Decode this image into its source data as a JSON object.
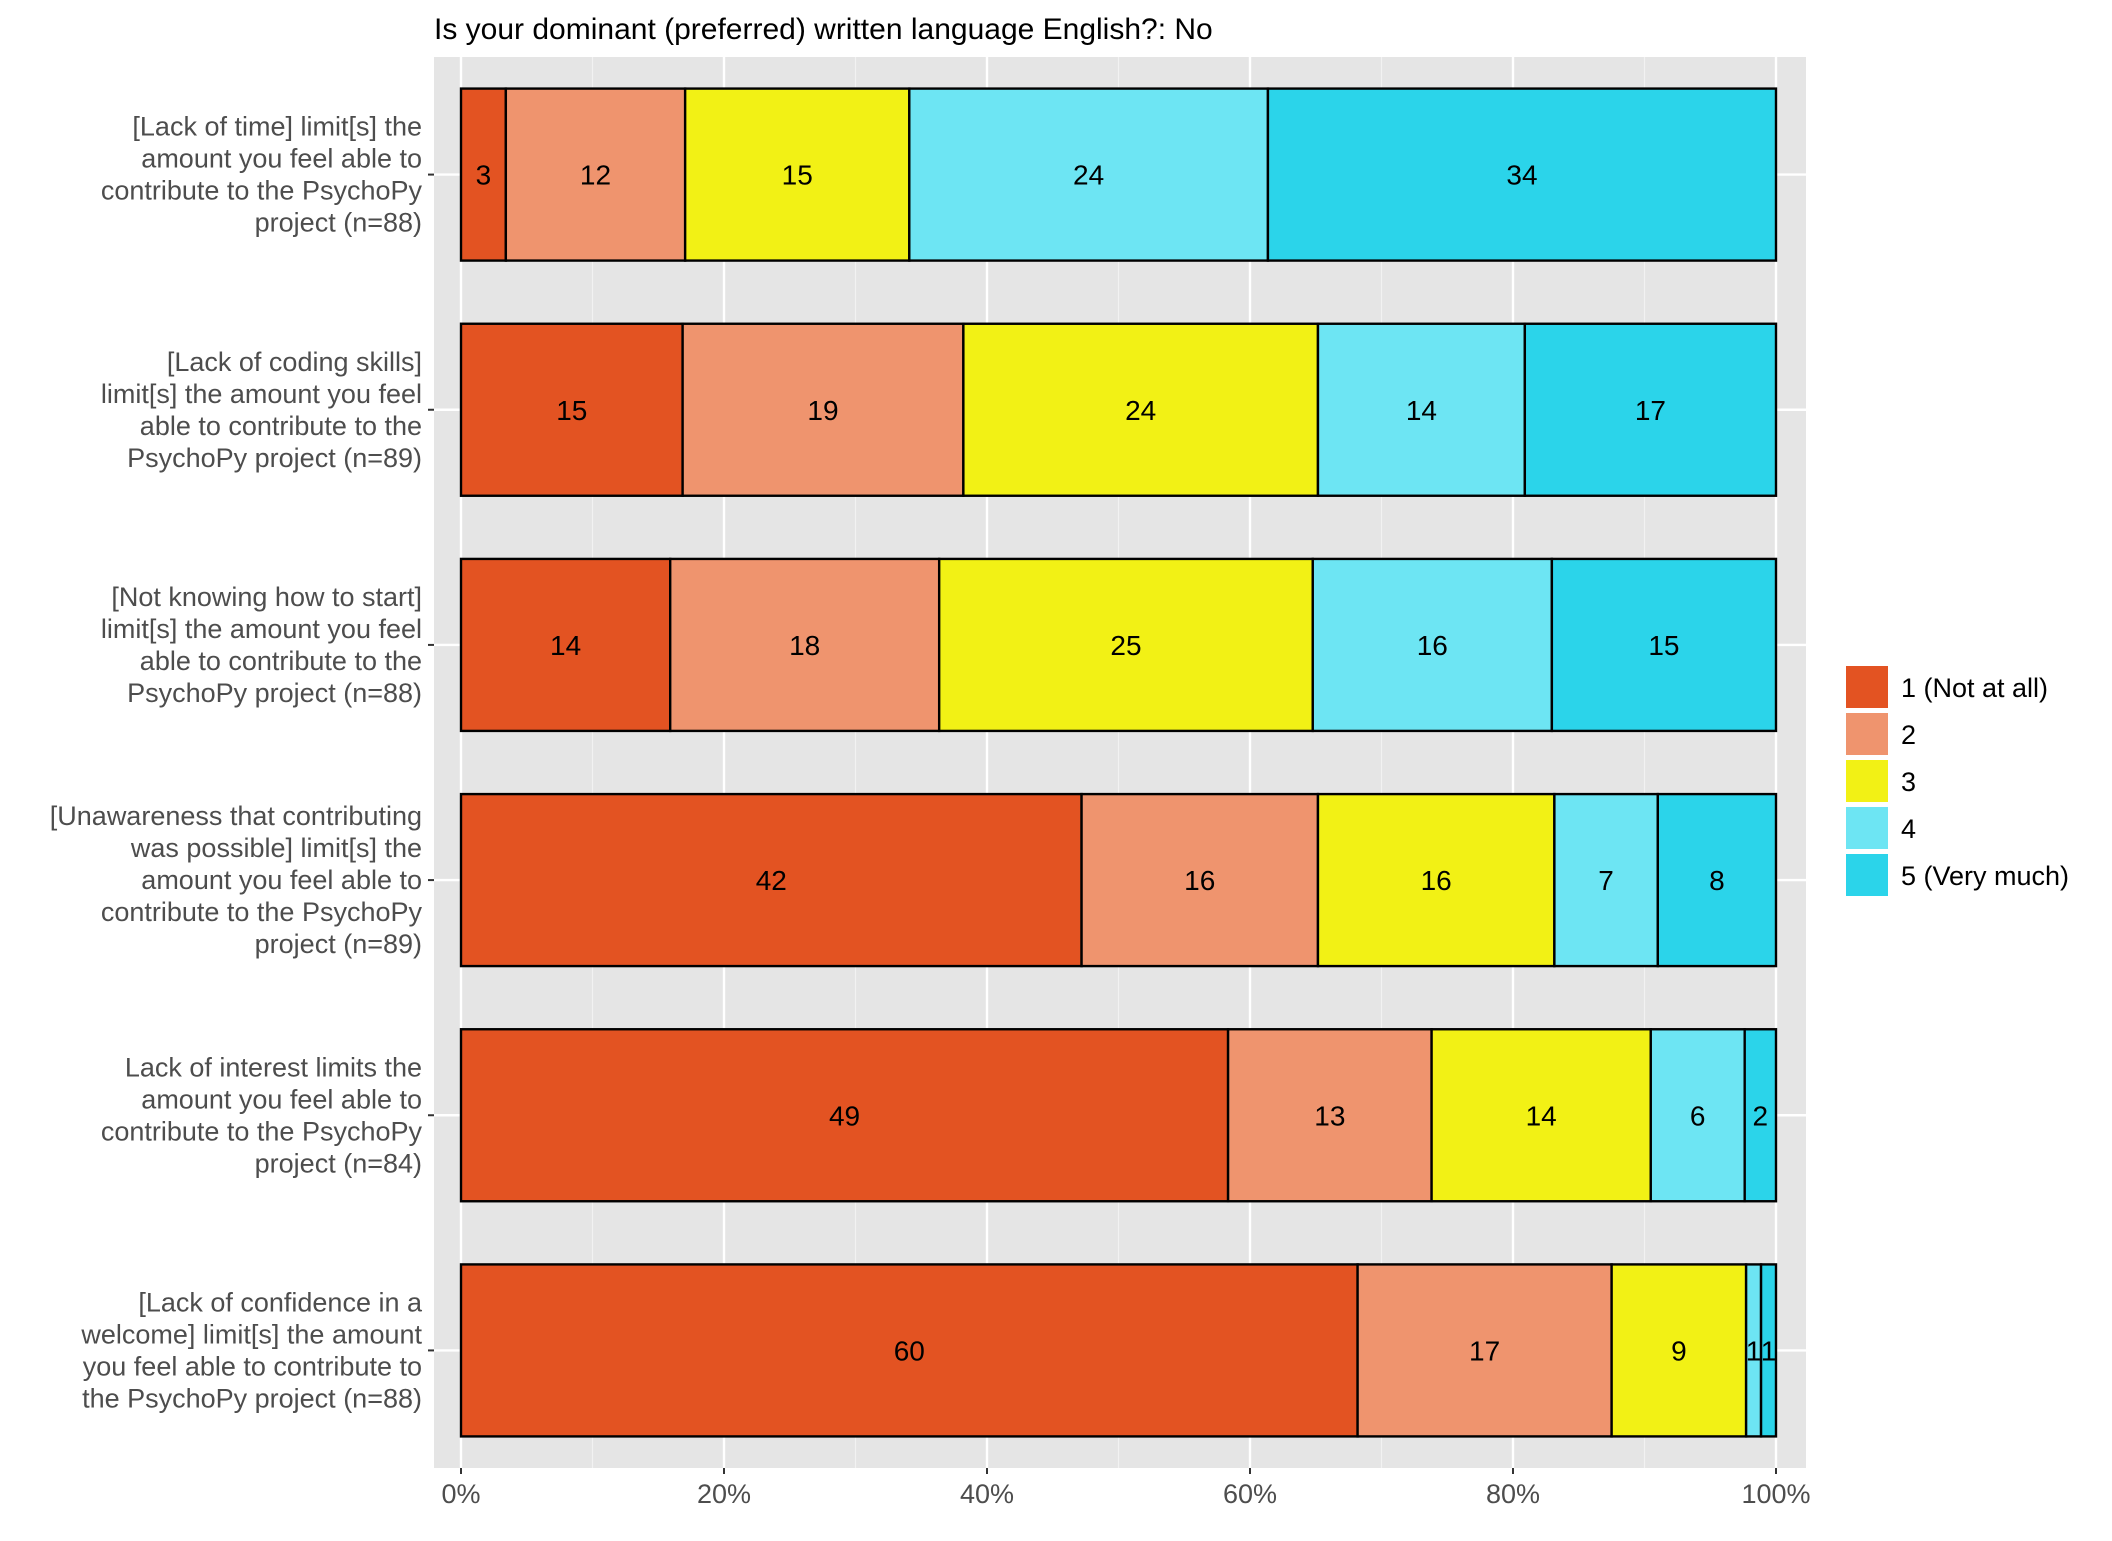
{
  "chart_data": {
    "type": "bar",
    "orientation": "horizontal",
    "stacked": "percent",
    "title": "Is your dominant (preferred) written language English?: No",
    "xlabel": "",
    "ylabel": "",
    "xlim": [
      0,
      1
    ],
    "x_ticks": [
      "0%",
      "20%",
      "40%",
      "60%",
      "80%",
      "100%"
    ],
    "grid": true,
    "legend_position": "right",
    "categories": [
      [
        "[Lack of time] limit[s] the",
        "amount you feel able to",
        "contribute to the PsychoPy",
        "project (n=88)"
      ],
      [
        "[Lack of coding skills]",
        "limit[s] the amount you feel",
        "able to contribute to the",
        "PsychoPy project  (n=89)"
      ],
      [
        "[Not knowing how to start]",
        "limit[s] the amount you feel",
        "able to contribute to the",
        "PsychoPy project (n=88)"
      ],
      [
        "[Unawareness that contributing",
        "was possible] limit[s] the",
        "amount you feel able to",
        "contribute to the PsychoPy",
        "project (n=89)"
      ],
      [
        "Lack of interest limits the",
        "amount you feel able to",
        "contribute to the PsychoPy",
        "project (n=84)"
      ],
      [
        "[Lack of confidence in a",
        "welcome] limit[s] the amount",
        "you feel able to contribute to",
        "the PsychoPy project (n=88)"
      ]
    ],
    "series": [
      {
        "name": "1 (Not at all)",
        "color": "#e35322",
        "values": [
          3,
          15,
          14,
          42,
          49,
          60
        ]
      },
      {
        "name": "2",
        "color": "#ef946e",
        "values": [
          12,
          19,
          18,
          16,
          13,
          17
        ]
      },
      {
        "name": "3",
        "color": "#f2f115",
        "values": [
          15,
          24,
          25,
          16,
          14,
          9
        ]
      },
      {
        "name": "4",
        "color": "#6de5f3",
        "values": [
          24,
          14,
          16,
          7,
          6,
          1
        ]
      },
      {
        "name": "5 (Very much)",
        "color": "#2bd4ea",
        "values": [
          34,
          17,
          15,
          8,
          2,
          1
        ]
      }
    ]
  }
}
